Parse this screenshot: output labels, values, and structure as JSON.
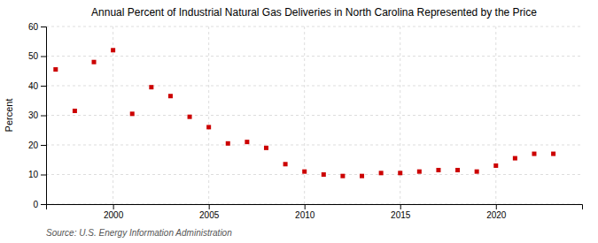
{
  "chart_data": {
    "type": "scatter",
    "title": "Annual Percent of Industrial Natural Gas Deliveries in North Carolina Represented by the Price",
    "ylabel": "Percent",
    "source": "Source: U.S. Energy Information Administration",
    "x": [
      1997,
      1998,
      1999,
      2000,
      2001,
      2002,
      2003,
      2004,
      2005,
      2006,
      2007,
      2008,
      2009,
      2010,
      2011,
      2012,
      2013,
      2014,
      2015,
      2016,
      2017,
      2018,
      2019,
      2020,
      2021,
      2022,
      2023
    ],
    "values": [
      45.5,
      31.5,
      48.0,
      52.0,
      30.5,
      39.5,
      36.5,
      29.5,
      26.0,
      20.5,
      21.0,
      19.0,
      13.5,
      11.0,
      10.0,
      9.5,
      9.5,
      10.5,
      10.5,
      11.0,
      11.5,
      11.5,
      11.0,
      13.0,
      15.5,
      17.0,
      17.0
    ],
    "color": "#cc0000",
    "marker": "square",
    "xlim": [
      1996.5,
      2024.5
    ],
    "xticks": [
      2000,
      2005,
      2010,
      2015,
      2020
    ],
    "ylim": [
      0,
      60
    ],
    "yticks": [
      0,
      10,
      20,
      30,
      40,
      50,
      60
    ],
    "grid": true
  }
}
